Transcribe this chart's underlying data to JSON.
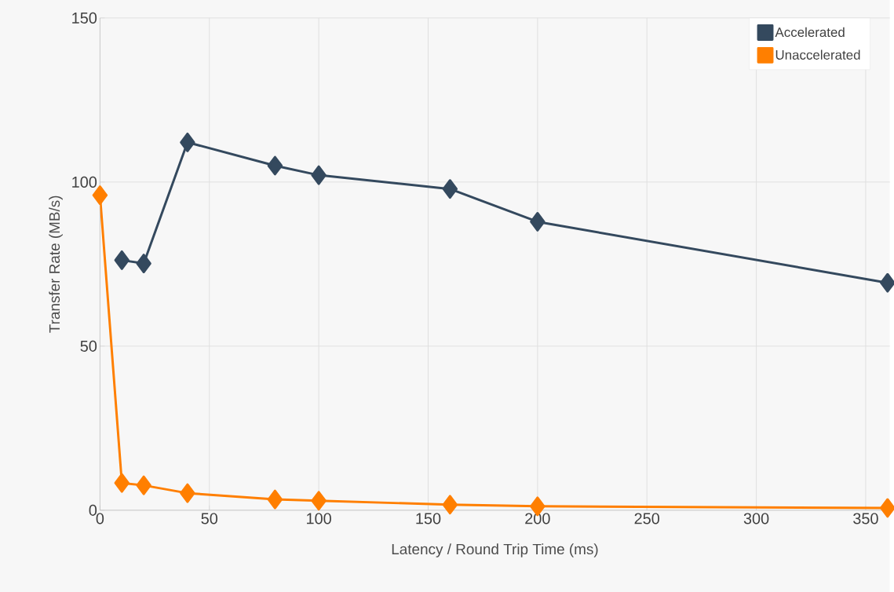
{
  "chart_data": {
    "type": "line",
    "xlabel": "Latency / Round Trip Time (ms)",
    "ylabel": "Transfer Rate (MB/s)",
    "x": [
      0,
      10,
      20,
      40,
      80,
      100,
      160,
      200,
      360
    ],
    "series": [
      {
        "name": "Accelerated",
        "color": "#34495e",
        "values": [
          null,
          76.2,
          75.2,
          112.1,
          105,
          102.1,
          97.9,
          87.9,
          69.3
        ]
      },
      {
        "name": "Unaccelerated",
        "color": "#ff7f00",
        "values": [
          96,
          8.3,
          7.6,
          5.2,
          3.3,
          2.9,
          1.7,
          1.2,
          0.7
        ]
      }
    ],
    "xlim": [
      0,
      361
    ],
    "ylim": [
      0,
      150
    ],
    "xticks": [
      0,
      50,
      100,
      150,
      200,
      250,
      300,
      350
    ],
    "yticks": [
      0,
      50,
      100,
      150
    ],
    "grid": true,
    "legend": "top right",
    "marker": "diamond",
    "line_style": "solid"
  }
}
